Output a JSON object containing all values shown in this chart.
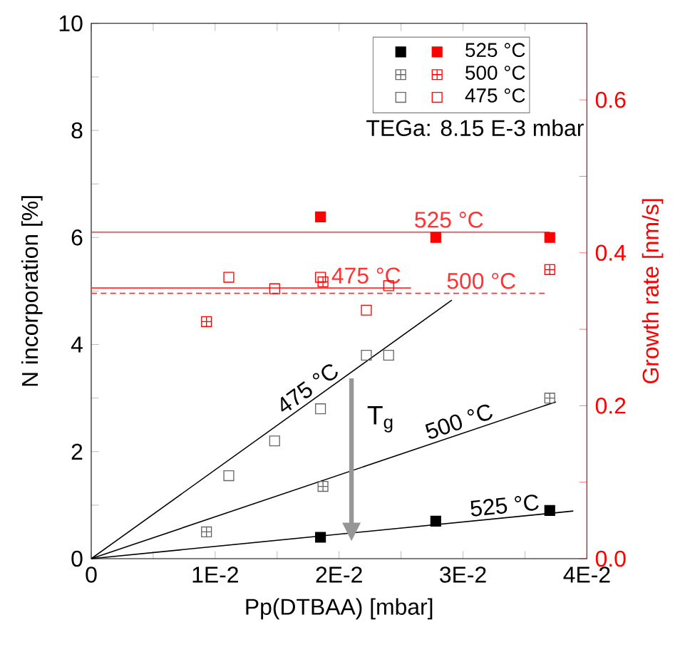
{
  "chart_data": {
    "type": "scatter",
    "xlabel": "Pp(DTBAA) [mbar]",
    "ylabel": "N incorporation [%]",
    "y2label": "Growth rate [nm/s]",
    "xlim": [
      0,
      0.04
    ],
    "ylim": [
      0,
      10
    ],
    "y2lim": [
      0,
      0.7
    ],
    "xticks": [
      0,
      {
        "value": 0.005,
        "label": null
      },
      {
        "value": 0.01,
        "label": "1E-2"
      },
      {
        "value": 0.015,
        "label": null
      },
      {
        "value": 0.02,
        "label": "2E-2"
      },
      {
        "value": 0.025,
        "label": null
      },
      {
        "value": 0.03,
        "label": "3E-2"
      },
      {
        "value": 0.035,
        "label": null
      },
      {
        "value": 0.04,
        "label": "4E-2"
      }
    ],
    "yticks": [
      0,
      {
        "value": 1,
        "label": null
      },
      2,
      {
        "value": 3,
        "label": null
      },
      4,
      {
        "value": 5,
        "label": null
      },
      6,
      {
        "value": 7,
        "label": null
      },
      8,
      {
        "value": 9,
        "label": null
      },
      10
    ],
    "y2ticks": [
      {
        "value": 0,
        "label": "0.0"
      },
      {
        "value": 0.1,
        "label": null
      },
      {
        "value": 0.2,
        "label": "0.2"
      },
      {
        "value": 0.3,
        "label": null
      },
      {
        "value": 0.4,
        "label": "0.4"
      },
      {
        "value": 0.5,
        "label": null
      },
      {
        "value": 0.6,
        "label": "0.6"
      }
    ],
    "legend": "top right",
    "grid": false,
    "annotations": [
      "TEGa: 8.15 E-3 mbar",
      "T$_{g}$"
    ],
    "series": [
      {
        "color": "#000000",
        "x": [
          0.0185,
          0.0278,
          0.037
        ],
        "values": [
          0.4,
          0.7,
          0.9
        ]
      },
      {
        "color": "#666666",
        "x": [
          0.0093,
          0.0187,
          0.037
        ],
        "values": [
          0.5,
          1.35,
          3.0
        ]
      },
      {
        "color": "#666666",
        "x": [
          0.0111,
          0.0148,
          0.0185,
          0.0222,
          0.024
        ],
        "values": [
          1.55,
          2.2,
          2.8,
          3.8,
          3.8
        ]
      },
      {
        "name": "525 °C",
        "color": "#ff0000",
        "axis": "y2",
        "x": [
          0.0185,
          0.0278,
          0.037
        ],
        "values": [
          0.447,
          0.42,
          0.42
        ]
      },
      {
        "name": "500 °C",
        "color": "#ff0000",
        "axis": "y2",
        "x": [
          0.0093,
          0.0187,
          0.037
        ],
        "values": [
          0.31,
          0.362,
          0.378
        ]
      },
      {
        "name": "475 °C",
        "color": "#ff0000",
        "axis": "y2",
        "x": [
          0.0111,
          0.0148,
          0.0185,
          0.0222,
          0.024
        ],
        "values": [
          0.368,
          0.353,
          0.368,
          0.325,
          0.357
        ]
      },
      {
        "name": "475 °C",
        "type": "line",
        "color": "#000000",
        "x": [
          0,
          0.0291
        ],
        "values": [
          0,
          4.83
        ]
      },
      {
        "name": "500 °C",
        "type": "line",
        "color": "#000000",
        "x": [
          0,
          0.0375
        ],
        "values": [
          0,
          2.93
        ]
      },
      {
        "name": "525 °C",
        "type": "line",
        "color": "#000000",
        "x": [
          0,
          0.0389
        ],
        "values": [
          0,
          0.89
        ]
      },
      {
        "name": "525 °C",
        "type": "line",
        "color": "#ff3333",
        "axis": "y2",
        "x": [
          0,
          0.037
        ],
        "values": [
          0.427,
          0.427
        ]
      },
      {
        "name": "475 °C",
        "type": "line",
        "color": "#ff3333",
        "axis": "y2",
        "x": [
          0,
          0.0258
        ],
        "values": [
          0.354,
          0.354
        ]
      },
      {
        "name": "500 °C",
        "type": "line",
        "color": "#ff3333",
        "axis": "y2",
        "line_style": "dashed",
        "x": [
          0,
          0.0366
        ],
        "values": [
          0.347,
          0.347
        ]
      }
    ]
  }
}
